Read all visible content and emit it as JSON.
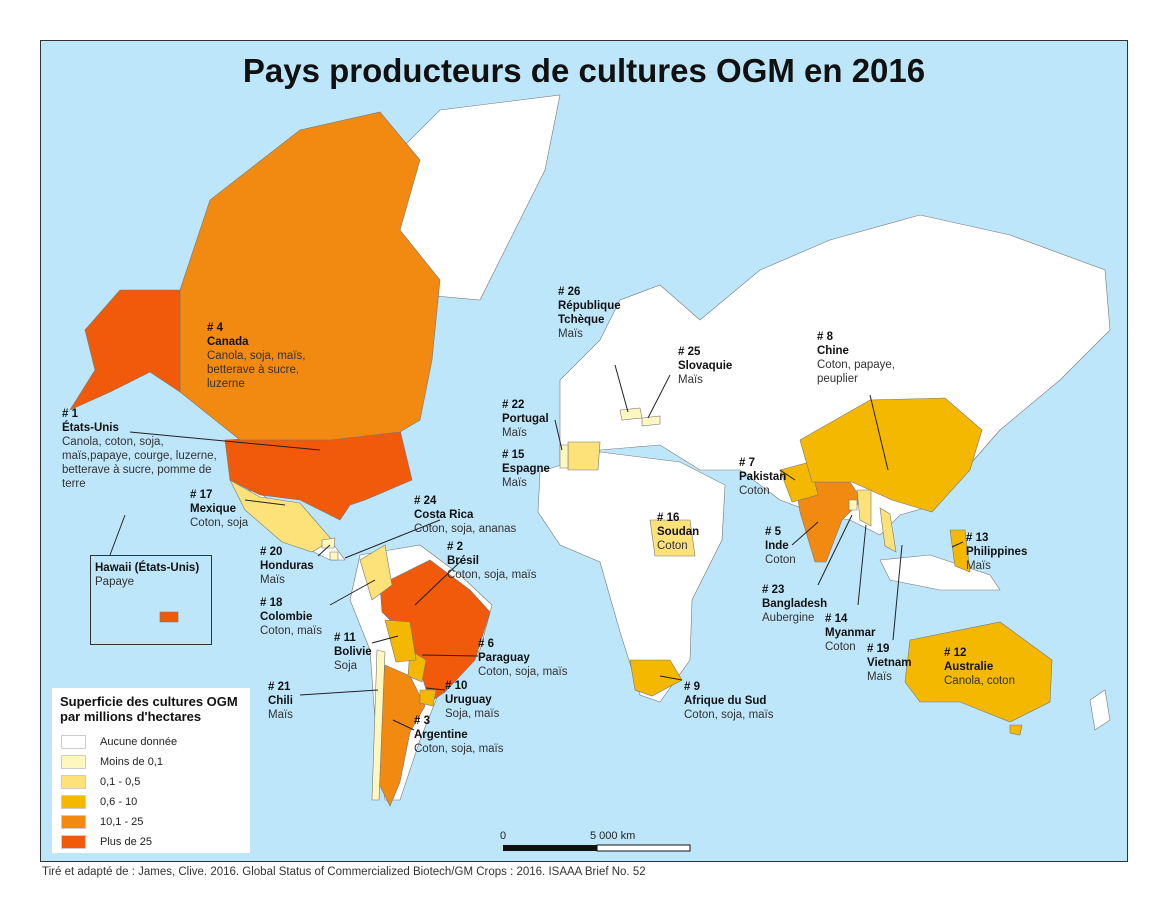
{
  "title": "Pays producteurs de cultures OGM en 2016",
  "colors": {
    "ocean": "#bee6fa",
    "none": "#ffffff",
    "lt01": "#fff7c0",
    "c01_05": "#fde27a",
    "c06_10": "#f5b800",
    "c10_25": "#f28a12",
    "gt25": "#f05a0a"
  },
  "legend": {
    "title": "Superficie des cultures OGM par millions d'hectares",
    "items": [
      {
        "label": "Aucune donnée",
        "key": "none"
      },
      {
        "label": "Moins de 0,1",
        "key": "lt01"
      },
      {
        "label": "0,1 - 0,5",
        "key": "c01_05"
      },
      {
        "label": "0,6 - 10",
        "key": "c06_10"
      },
      {
        "label": "10,1 - 25",
        "key": "c10_25"
      },
      {
        "label": "Plus de 25",
        "key": "gt25"
      }
    ]
  },
  "countries": [
    {
      "rank": "# 1",
      "name": "États-Unis",
      "crops": "Canola, coton, soja, maïs,papaye, courge, luzerne, betterave à sucre, pomme de terre",
      "class": "gt25"
    },
    {
      "rank": "# 2",
      "name": "Brésil",
      "crops": "Coton, soja, maïs",
      "class": "gt25"
    },
    {
      "rank": "# 3",
      "name": "Argentine",
      "crops": "Coton, soja, maïs",
      "class": "c10_25"
    },
    {
      "rank": "# 4",
      "name": "Canada",
      "crops": "Canola, soja, maïs, betterave à sucre, luzerne",
      "class": "c10_25"
    },
    {
      "rank": "# 5",
      "name": "Inde",
      "crops": "Coton",
      "class": "c10_25"
    },
    {
      "rank": "# 6",
      "name": "Paraguay",
      "crops": "Coton, soja, maïs",
      "class": "c06_10"
    },
    {
      "rank": "# 7",
      "name": "Pakistan",
      "crops": "Coton",
      "class": "c06_10"
    },
    {
      "rank": "# 8",
      "name": "Chine",
      "crops": "Coton, papaye, peuplier",
      "class": "c06_10"
    },
    {
      "rank": "# 9",
      "name": "Afrique du Sud",
      "crops": "Coton, soja, maïs",
      "class": "c06_10"
    },
    {
      "rank": "# 10",
      "name": "Uruguay",
      "crops": "Soja, maïs",
      "class": "c06_10"
    },
    {
      "rank": "# 11",
      "name": "Bolivie",
      "crops": "Soja",
      "class": "c06_10"
    },
    {
      "rank": "# 12",
      "name": "Australie",
      "crops": "Canola, coton",
      "class": "c06_10"
    },
    {
      "rank": "# 13",
      "name": "Philippines",
      "crops": "Maïs",
      "class": "c06_10"
    },
    {
      "rank": "# 14",
      "name": "Myanmar",
      "crops": "Coton",
      "class": "c01_05"
    },
    {
      "rank": "# 15",
      "name": "Espagne",
      "crops": "Maïs",
      "class": "c01_05"
    },
    {
      "rank": "# 16",
      "name": "Soudan",
      "crops": "Coton",
      "class": "c01_05"
    },
    {
      "rank": "# 17",
      "name": "Mexique",
      "crops": "Coton, soja",
      "class": "c01_05"
    },
    {
      "rank": "# 18",
      "name": "Colombie",
      "crops": "Coton, maïs",
      "class": "c01_05"
    },
    {
      "rank": "# 19",
      "name": "Vietnam",
      "crops": "Maïs",
      "class": "c01_05"
    },
    {
      "rank": "# 20",
      "name": "Honduras",
      "crops": "Maïs",
      "class": "lt01"
    },
    {
      "rank": "# 21",
      "name": "Chili",
      "crops": "Maïs",
      "class": "lt01"
    },
    {
      "rank": "# 22",
      "name": "Portugal",
      "crops": "Maïs",
      "class": "lt01"
    },
    {
      "rank": "# 23",
      "name": "Bangladesh",
      "crops": "Aubergine",
      "class": "lt01"
    },
    {
      "rank": "# 24",
      "name": "Costa Rica",
      "crops": "Coton, soja, ananas",
      "class": "lt01"
    },
    {
      "rank": "# 25",
      "name": "Slovaquie",
      "crops": "Maïs",
      "class": "lt01"
    },
    {
      "rank": "# 26",
      "name": "République Tchèque",
      "crops": "Maïs",
      "class": "lt01"
    }
  ],
  "hawaii": {
    "name": "Hawaii (États-Unis)",
    "crops": "Papaye"
  },
  "scale": {
    "start": "0",
    "end": "5 000 km"
  },
  "source": "Tiré et adapté de : James, Clive. 2016. Global Status of Commercialized Biotech/GM Crops : 2016.  ISAAA Brief No. 52"
}
